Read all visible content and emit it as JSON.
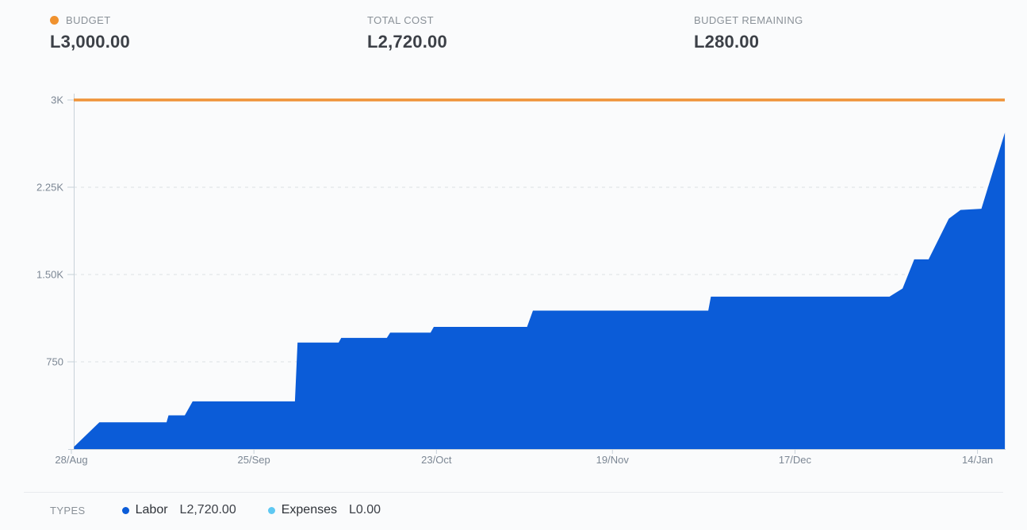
{
  "stats": {
    "budget": {
      "label": "BUDGET",
      "value": "L3,000.00",
      "dot_color": "#F0922F"
    },
    "total_cost": {
      "label": "TOTAL COST",
      "value": "L2,720.00"
    },
    "budget_remaining": {
      "label": "BUDGET REMAINING",
      "value": "L280.00"
    }
  },
  "legend": {
    "title": "TYPES",
    "items": [
      {
        "label": "Labor",
        "value": "L2,720.00",
        "color": "#0B5CD8"
      },
      {
        "label": "Expenses",
        "value": "L0.00",
        "color": "#5EC8F2"
      }
    ]
  },
  "chart_data": {
    "type": "area",
    "currency_prefix": "L",
    "budget": 3000,
    "total_cost": 2720,
    "budget_remaining": 280,
    "ylim": [
      0,
      3000
    ],
    "grid": "dashed horizontal gridlines",
    "legend_position": "bottom",
    "x_unit": "days since 28/Aug",
    "y_ticks": [
      {
        "label": "3K",
        "value": 3000,
        "gridline": false
      },
      {
        "label": "2.25K",
        "value": 2250,
        "gridline": true
      },
      {
        "label": "1.50K",
        "value": 1500,
        "gridline": true
      },
      {
        "label": "750",
        "value": 750,
        "gridline": true
      }
    ],
    "x_ticks": [
      {
        "label": "28/Aug",
        "day": 0
      },
      {
        "label": "25/Sep",
        "day": 28
      },
      {
        "label": "23/Oct",
        "day": 56
      },
      {
        "label": "19/Nov",
        "day": 83
      },
      {
        "label": "17/Dec",
        "day": 111
      },
      {
        "label": "14/Jan",
        "day": 139
      }
    ],
    "budget_line": {
      "value": 3000,
      "color": "#EF9338"
    },
    "series": [
      {
        "name": "Labor",
        "color": "#0B5CD8",
        "total": 2720,
        "points": [
          [
            0.4,
            20
          ],
          [
            4.3,
            230
          ],
          [
            14.6,
            230
          ],
          [
            14.9,
            290
          ],
          [
            17.4,
            290
          ],
          [
            18.6,
            410
          ],
          [
            34.3,
            410
          ],
          [
            34.7,
            915
          ],
          [
            41.0,
            915
          ],
          [
            41.4,
            955
          ],
          [
            48.4,
            955
          ],
          [
            48.9,
            1000
          ],
          [
            55.1,
            1000
          ],
          [
            55.6,
            1050
          ],
          [
            69.9,
            1050
          ],
          [
            70.8,
            1190
          ],
          [
            97.7,
            1190
          ],
          [
            98.1,
            1310
          ],
          [
            125.5,
            1310
          ],
          [
            127.5,
            1380
          ],
          [
            129.3,
            1630
          ],
          [
            131.5,
            1630
          ],
          [
            134.6,
            1980
          ],
          [
            136.4,
            2055
          ],
          [
            139.6,
            2065
          ],
          [
            143.2,
            2720
          ]
        ]
      },
      {
        "name": "Expenses",
        "color": "#5EC8F2",
        "total": 0,
        "points": [
          [
            0,
            0
          ],
          [
            143.2,
            0
          ]
        ]
      }
    ]
  }
}
